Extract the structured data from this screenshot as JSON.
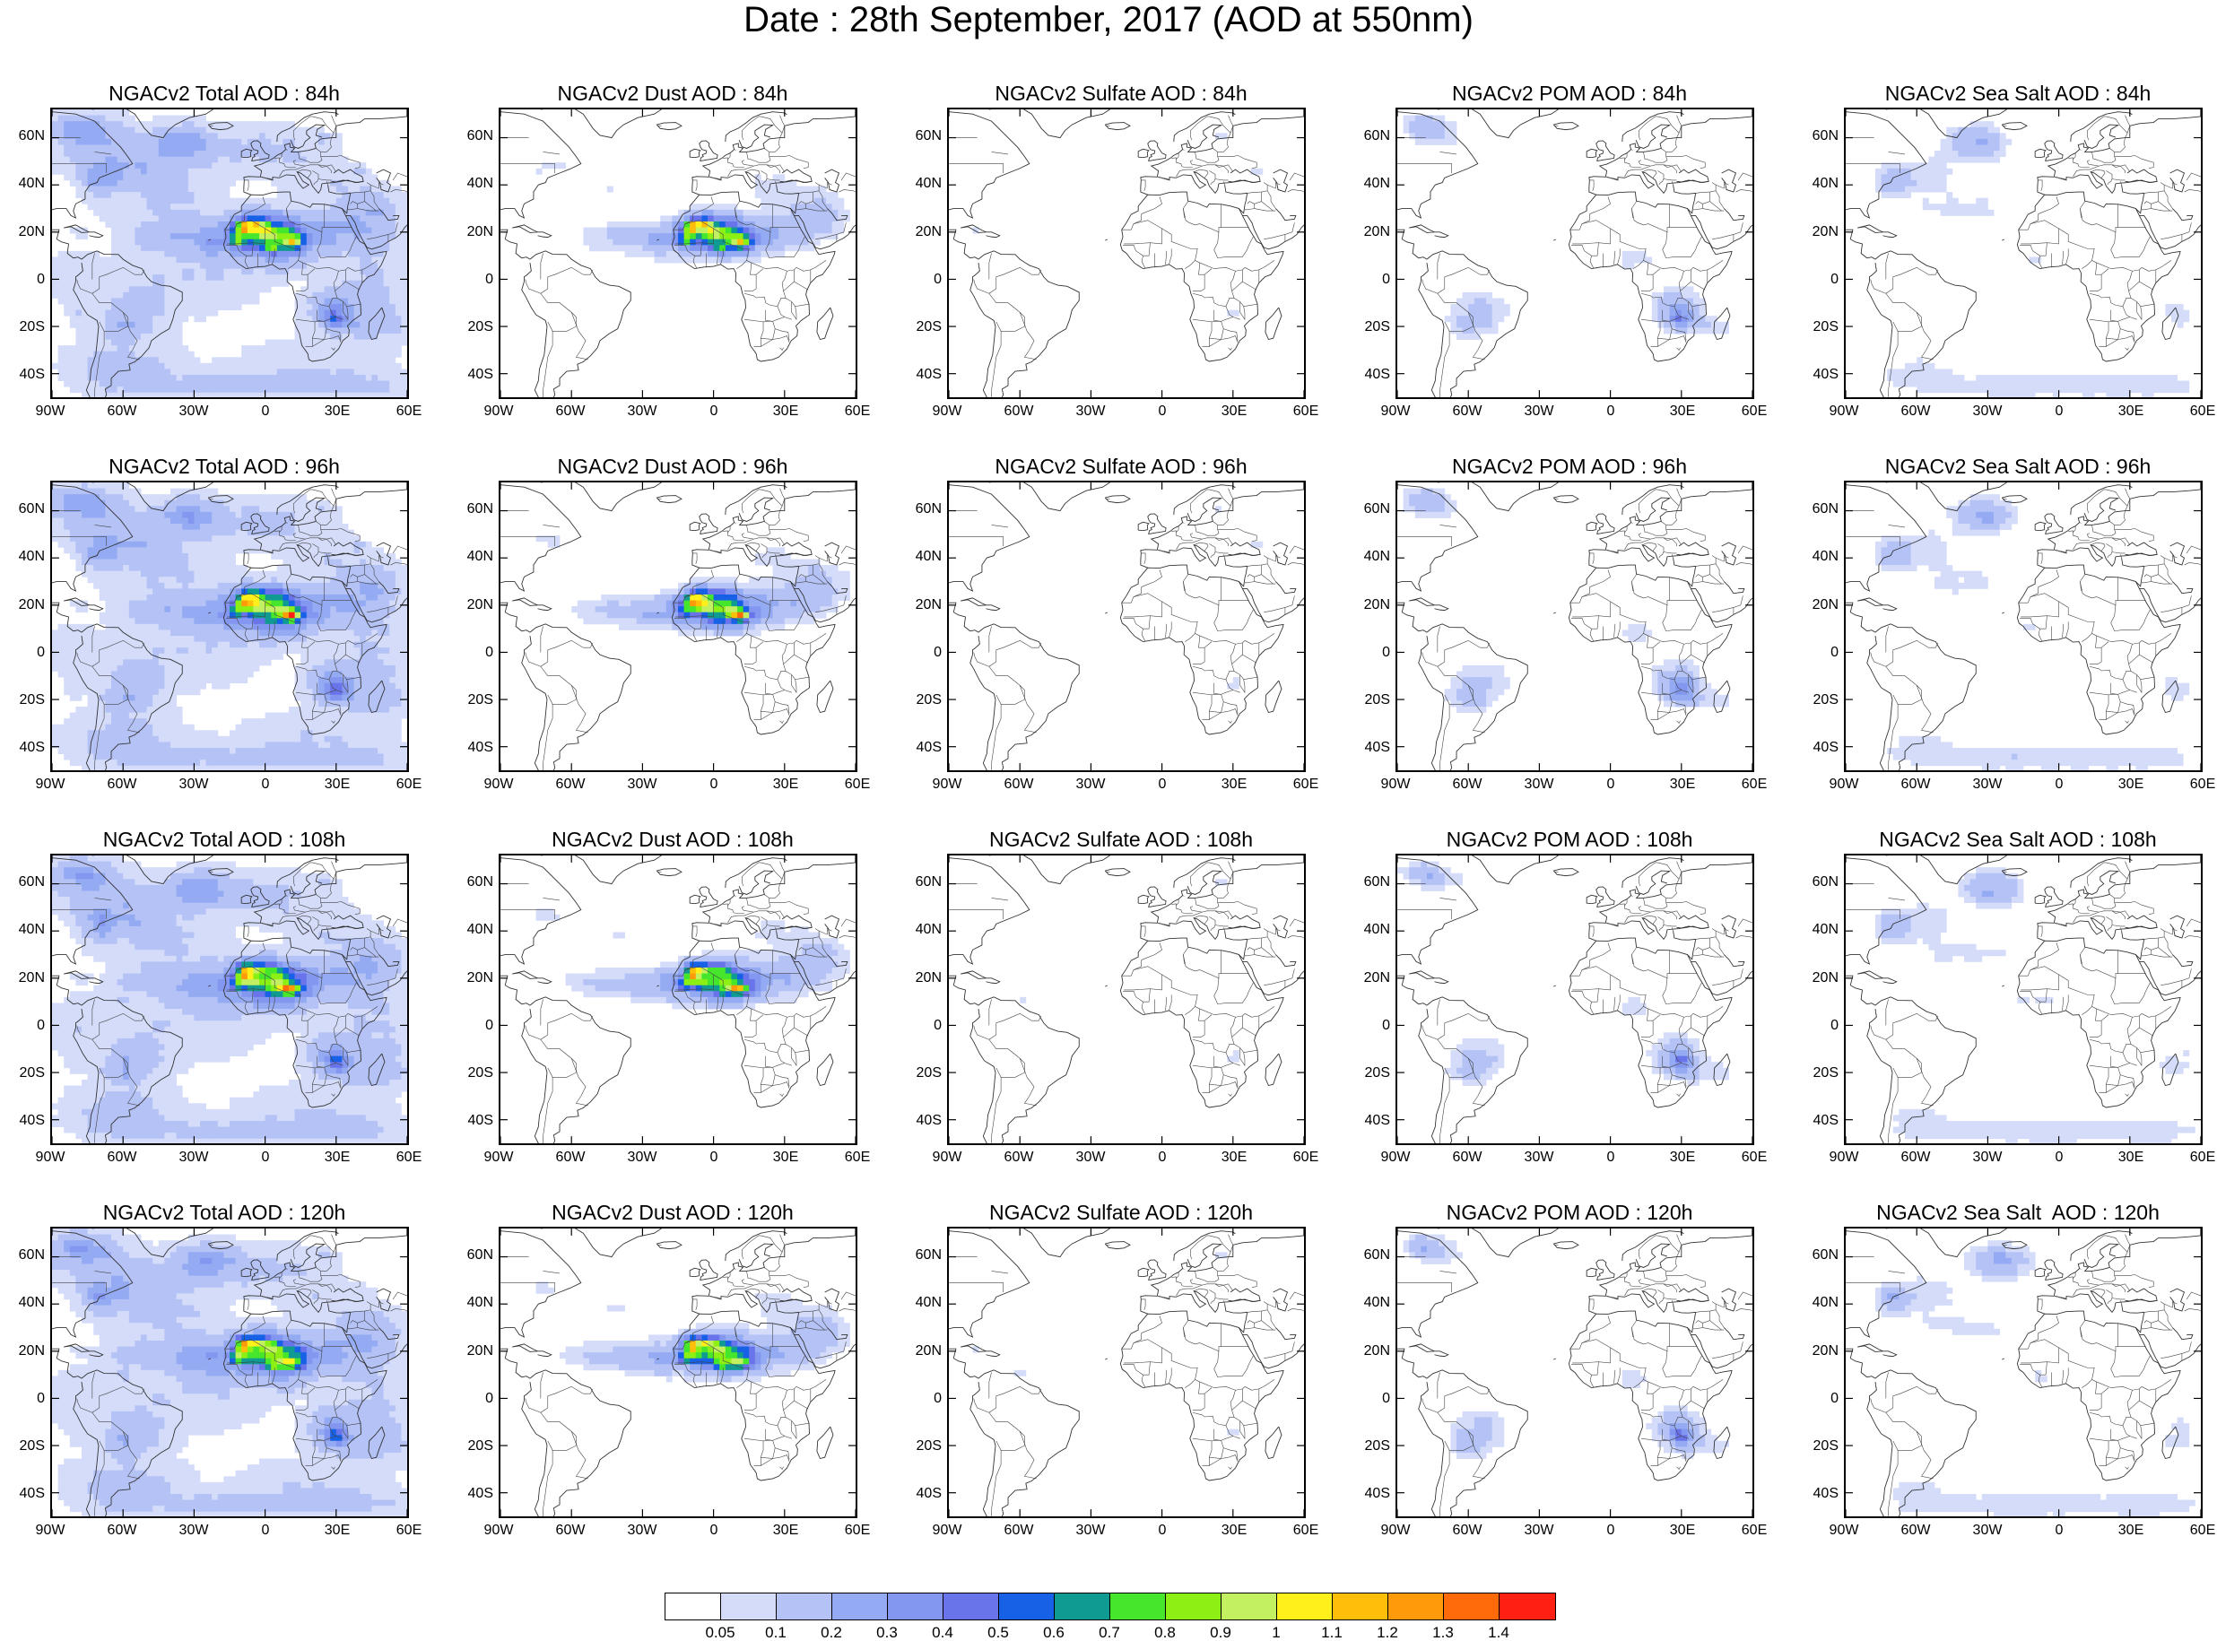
{
  "title": "Date : 28th September, 2017 (AOD at 550nm)",
  "lat_labels": [
    "60N",
    "40N",
    "20N",
    "0",
    "20S",
    "40S"
  ],
  "lon_labels": [
    "90W",
    "60W",
    "30W",
    "0",
    "30E",
    "60E"
  ],
  "panels": [
    [
      {
        "title": "NGACv2 Total AOD : 84h",
        "species": "total"
      },
      {
        "title": "NGACv2 Dust AOD : 84h",
        "species": "dust"
      },
      {
        "title": "NGACv2 Sulfate AOD : 84h",
        "species": "sulfate"
      },
      {
        "title": "NGACv2 POM AOD : 84h",
        "species": "pom"
      },
      {
        "title": "NGACv2 Sea Salt AOD : 84h",
        "species": "seasalt"
      }
    ],
    [
      {
        "title": "NGACv2 Total AOD : 96h",
        "species": "total"
      },
      {
        "title": "NGACv2 Dust AOD : 96h",
        "species": "dust"
      },
      {
        "title": "NGACv2 Sulfate AOD : 96h",
        "species": "sulfate"
      },
      {
        "title": "NGACv2 POM AOD : 96h",
        "species": "pom"
      },
      {
        "title": "NGACv2 Sea Salt AOD : 96h",
        "species": "seasalt"
      }
    ],
    [
      {
        "title": "NGACv2 Total AOD : 108h",
        "species": "total"
      },
      {
        "title": "NGACv2 Dust AOD : 108h",
        "species": "dust"
      },
      {
        "title": "NGACv2 Sulfate AOD : 108h",
        "species": "sulfate"
      },
      {
        "title": "NGACv2 POM AOD : 108h",
        "species": "pom"
      },
      {
        "title": "NGACv2 Sea Salt AOD : 108h",
        "species": "seasalt"
      }
    ],
    [
      {
        "title": "NGACv2 Total AOD : 120h",
        "species": "total"
      },
      {
        "title": "NGACv2 Dust AOD : 120h",
        "species": "dust"
      },
      {
        "title": "NGACv2 Sulfate AOD : 120h",
        "species": "sulfate"
      },
      {
        "title": "NGACv2 POM AOD : 120h",
        "species": "pom"
      },
      {
        "title": "NGACv2 Sea Salt  AOD : 120h",
        "species": "seasalt"
      }
    ]
  ],
  "colorbar": {
    "labels": [
      "0.05",
      "0.1",
      "0.2",
      "0.3",
      "0.4",
      "0.5",
      "0.6",
      "0.7",
      "0.8",
      "0.9",
      "1",
      "1.1",
      "1.2",
      "1.3",
      "1.4"
    ],
    "colors": [
      "#ffffff",
      "#d4dcfa",
      "#b4c2f6",
      "#94aaf2",
      "#8497f0",
      "#6a74ea",
      "#1661e6",
      "#0f9a92",
      "#46e62c",
      "#8cf014",
      "#c2f060",
      "#fff01c",
      "#ffbe0a",
      "#ff9a0a",
      "#ff6a0a",
      "#ff2014"
    ]
  }
}
